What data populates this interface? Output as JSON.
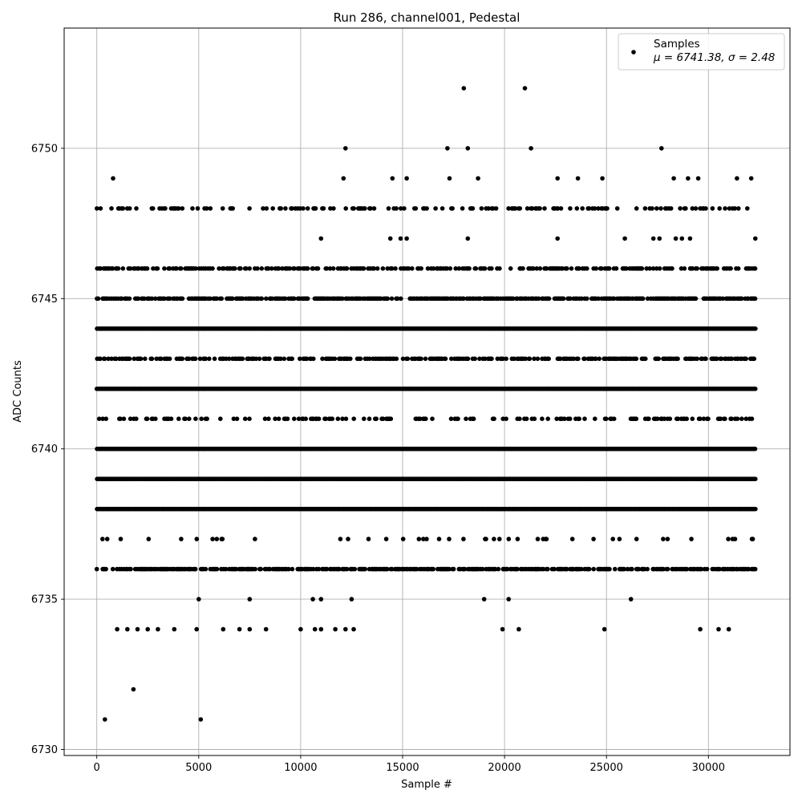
{
  "chart_data": {
    "type": "scatter",
    "title": "Run 286, channel001, Pedestal",
    "xlabel": "Sample #",
    "ylabel": "ADC Counts",
    "xlim": [
      -1600,
      34000
    ],
    "ylim": [
      6729.8,
      6754.0
    ],
    "x_ticks": [
      0,
      5000,
      10000,
      15000,
      20000,
      25000,
      30000
    ],
    "y_ticks": [
      6730,
      6735,
      6740,
      6745,
      6750
    ],
    "grid": true,
    "legend": {
      "position": "top-right",
      "label": "Samples",
      "stats": "μ = 6741.38, σ = 2.48"
    },
    "series": [
      {
        "name": "Samples",
        "color": "#000000",
        "x_range": [
          0,
          32300
        ],
        "mean": 6741.38,
        "std": 2.48,
        "dense_levels": [
          {
            "y": 6744,
            "coverage": 1.0
          },
          {
            "y": 6742,
            "coverage": 1.0
          },
          {
            "y": 6740,
            "coverage": 1.0
          },
          {
            "y": 6739,
            "coverage": 1.0
          },
          {
            "y": 6738,
            "coverage": 1.0
          },
          {
            "y": 6745,
            "coverage": 0.65
          },
          {
            "y": 6736,
            "coverage": 0.6
          },
          {
            "y": 6743,
            "coverage": 0.5
          },
          {
            "y": 6746,
            "coverage": 0.45
          },
          {
            "y": 6741,
            "coverage": 0.25
          },
          {
            "y": 6748,
            "coverage": 0.25
          },
          {
            "y": 6737,
            "coverage": 0.06
          }
        ],
        "sparse_points": [
          [
            1000,
            6734
          ],
          [
            1500,
            6734
          ],
          [
            2000,
            6734
          ],
          [
            2500,
            6734
          ],
          [
            3000,
            6734
          ],
          [
            3800,
            6734
          ],
          [
            4900,
            6734
          ],
          [
            6200,
            6734
          ],
          [
            7000,
            6734
          ],
          [
            7500,
            6734
          ],
          [
            8300,
            6734
          ],
          [
            10000,
            6734
          ],
          [
            10700,
            6734
          ],
          [
            11000,
            6734
          ],
          [
            11700,
            6734
          ],
          [
            12200,
            6734
          ],
          [
            12600,
            6734
          ],
          [
            19900,
            6734
          ],
          [
            20700,
            6734
          ],
          [
            24900,
            6734
          ],
          [
            29600,
            6734
          ],
          [
            30500,
            6734
          ],
          [
            31000,
            6734
          ],
          [
            5000,
            6735
          ],
          [
            7500,
            6735
          ],
          [
            10600,
            6735
          ],
          [
            11000,
            6735
          ],
          [
            12500,
            6735
          ],
          [
            19000,
            6735
          ],
          [
            20200,
            6735
          ],
          [
            26200,
            6735
          ],
          [
            400,
            6731
          ],
          [
            5100,
            6731
          ],
          [
            1800,
            6732
          ],
          [
            11000,
            6747
          ],
          [
            14400,
            6747
          ],
          [
            14900,
            6747
          ],
          [
            15200,
            6747
          ],
          [
            18200,
            6747
          ],
          [
            22600,
            6747
          ],
          [
            25900,
            6747
          ],
          [
            27300,
            6747
          ],
          [
            27600,
            6747
          ],
          [
            28400,
            6747
          ],
          [
            28700,
            6747
          ],
          [
            29100,
            6747
          ],
          [
            32300,
            6747
          ],
          [
            800,
            6749
          ],
          [
            12100,
            6749
          ],
          [
            14500,
            6749
          ],
          [
            15200,
            6749
          ],
          [
            17300,
            6749
          ],
          [
            18700,
            6749
          ],
          [
            22600,
            6749
          ],
          [
            23600,
            6749
          ],
          [
            24800,
            6749
          ],
          [
            28300,
            6749
          ],
          [
            29000,
            6749
          ],
          [
            29500,
            6749
          ],
          [
            31400,
            6749
          ],
          [
            32100,
            6749
          ],
          [
            12200,
            6750
          ],
          [
            17200,
            6750
          ],
          [
            18200,
            6750
          ],
          [
            21300,
            6750
          ],
          [
            27700,
            6750
          ],
          [
            18000,
            6752
          ],
          [
            21000,
            6752
          ]
        ]
      }
    ]
  }
}
